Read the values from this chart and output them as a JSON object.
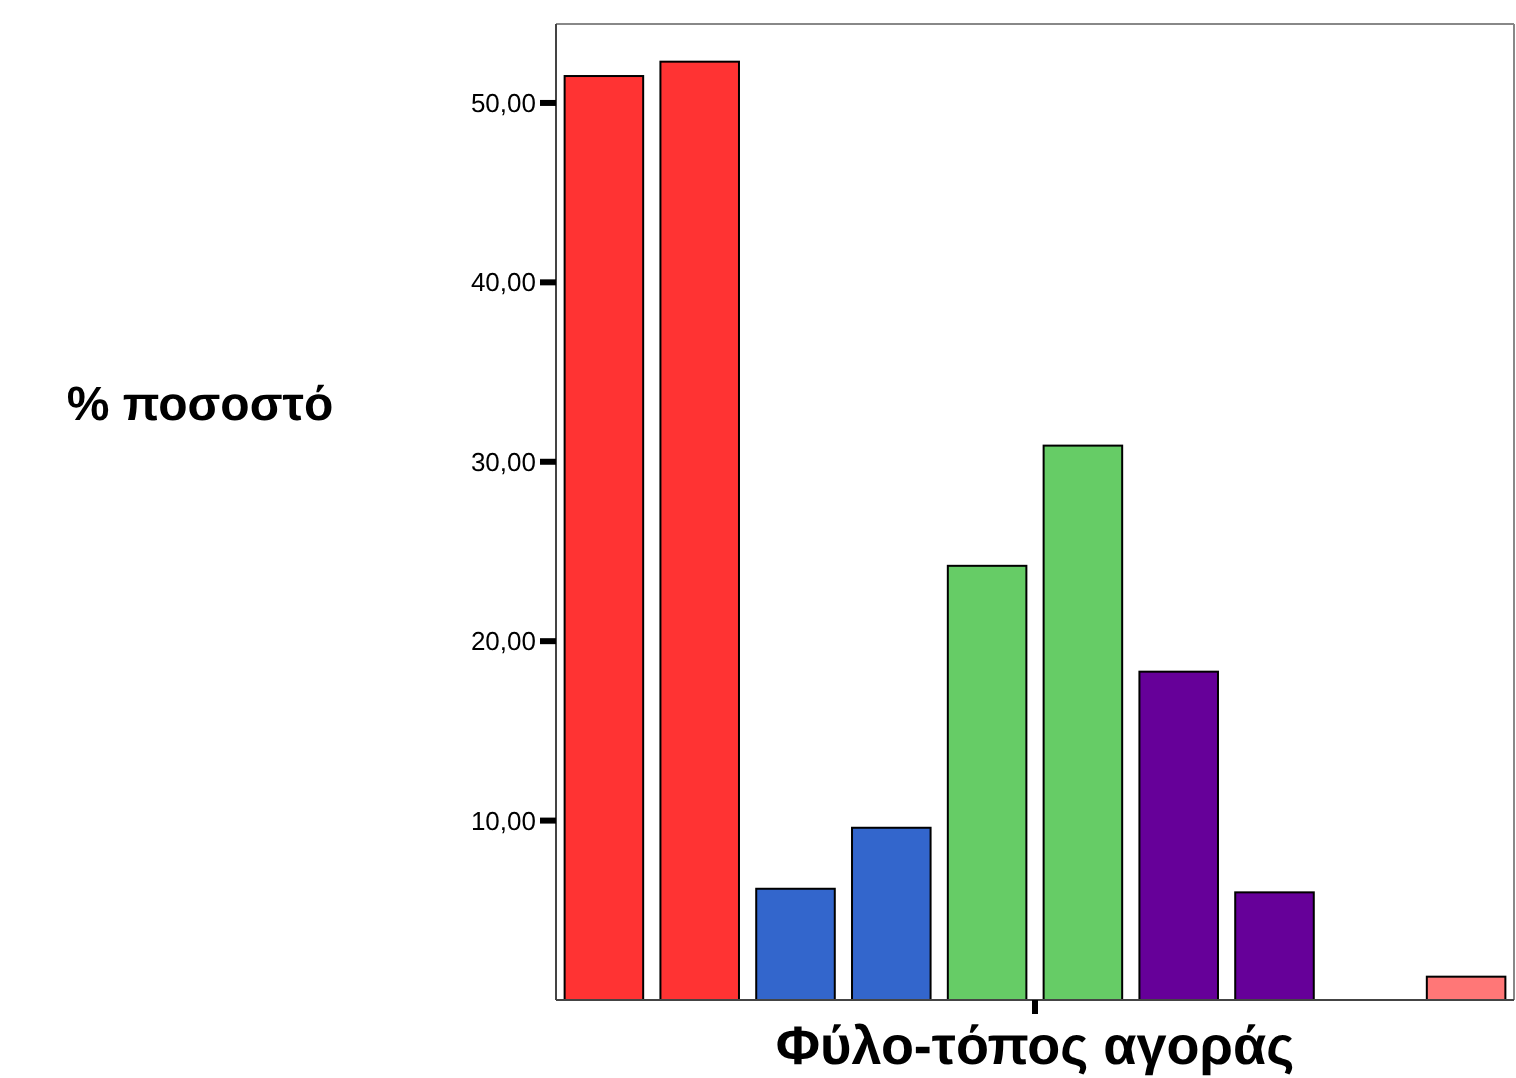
{
  "chart_data": {
    "type": "bar",
    "xlabel": "Φύλο-τόπος αγοράς",
    "ylabel": "% ποσοστό",
    "categories": [
      null,
      null,
      null,
      null,
      null,
      null,
      null,
      null,
      null,
      null
    ],
    "series": [
      {
        "values": [
          51.5,
          52.3,
          6.2,
          9.6,
          24.2,
          30.9,
          18.3,
          6.0,
          null,
          1.3
        ],
        "colors": [
          "#ff3333",
          "#ff3333",
          "#3366cc",
          "#3366cc",
          "#66cc66",
          "#66cc66",
          "#660099",
          "#660099",
          "#ff7777",
          "#ff7777"
        ]
      }
    ],
    "ylim": [
      0,
      54.4
    ],
    "yticks": [
      {
        "value": 10,
        "label": "10,00"
      },
      {
        "value": 20,
        "label": "20,00"
      },
      {
        "value": 30,
        "label": "30,00"
      },
      {
        "value": 40,
        "label": "40,00"
      },
      {
        "value": 50,
        "label": "50,00"
      }
    ],
    "grid": false
  }
}
